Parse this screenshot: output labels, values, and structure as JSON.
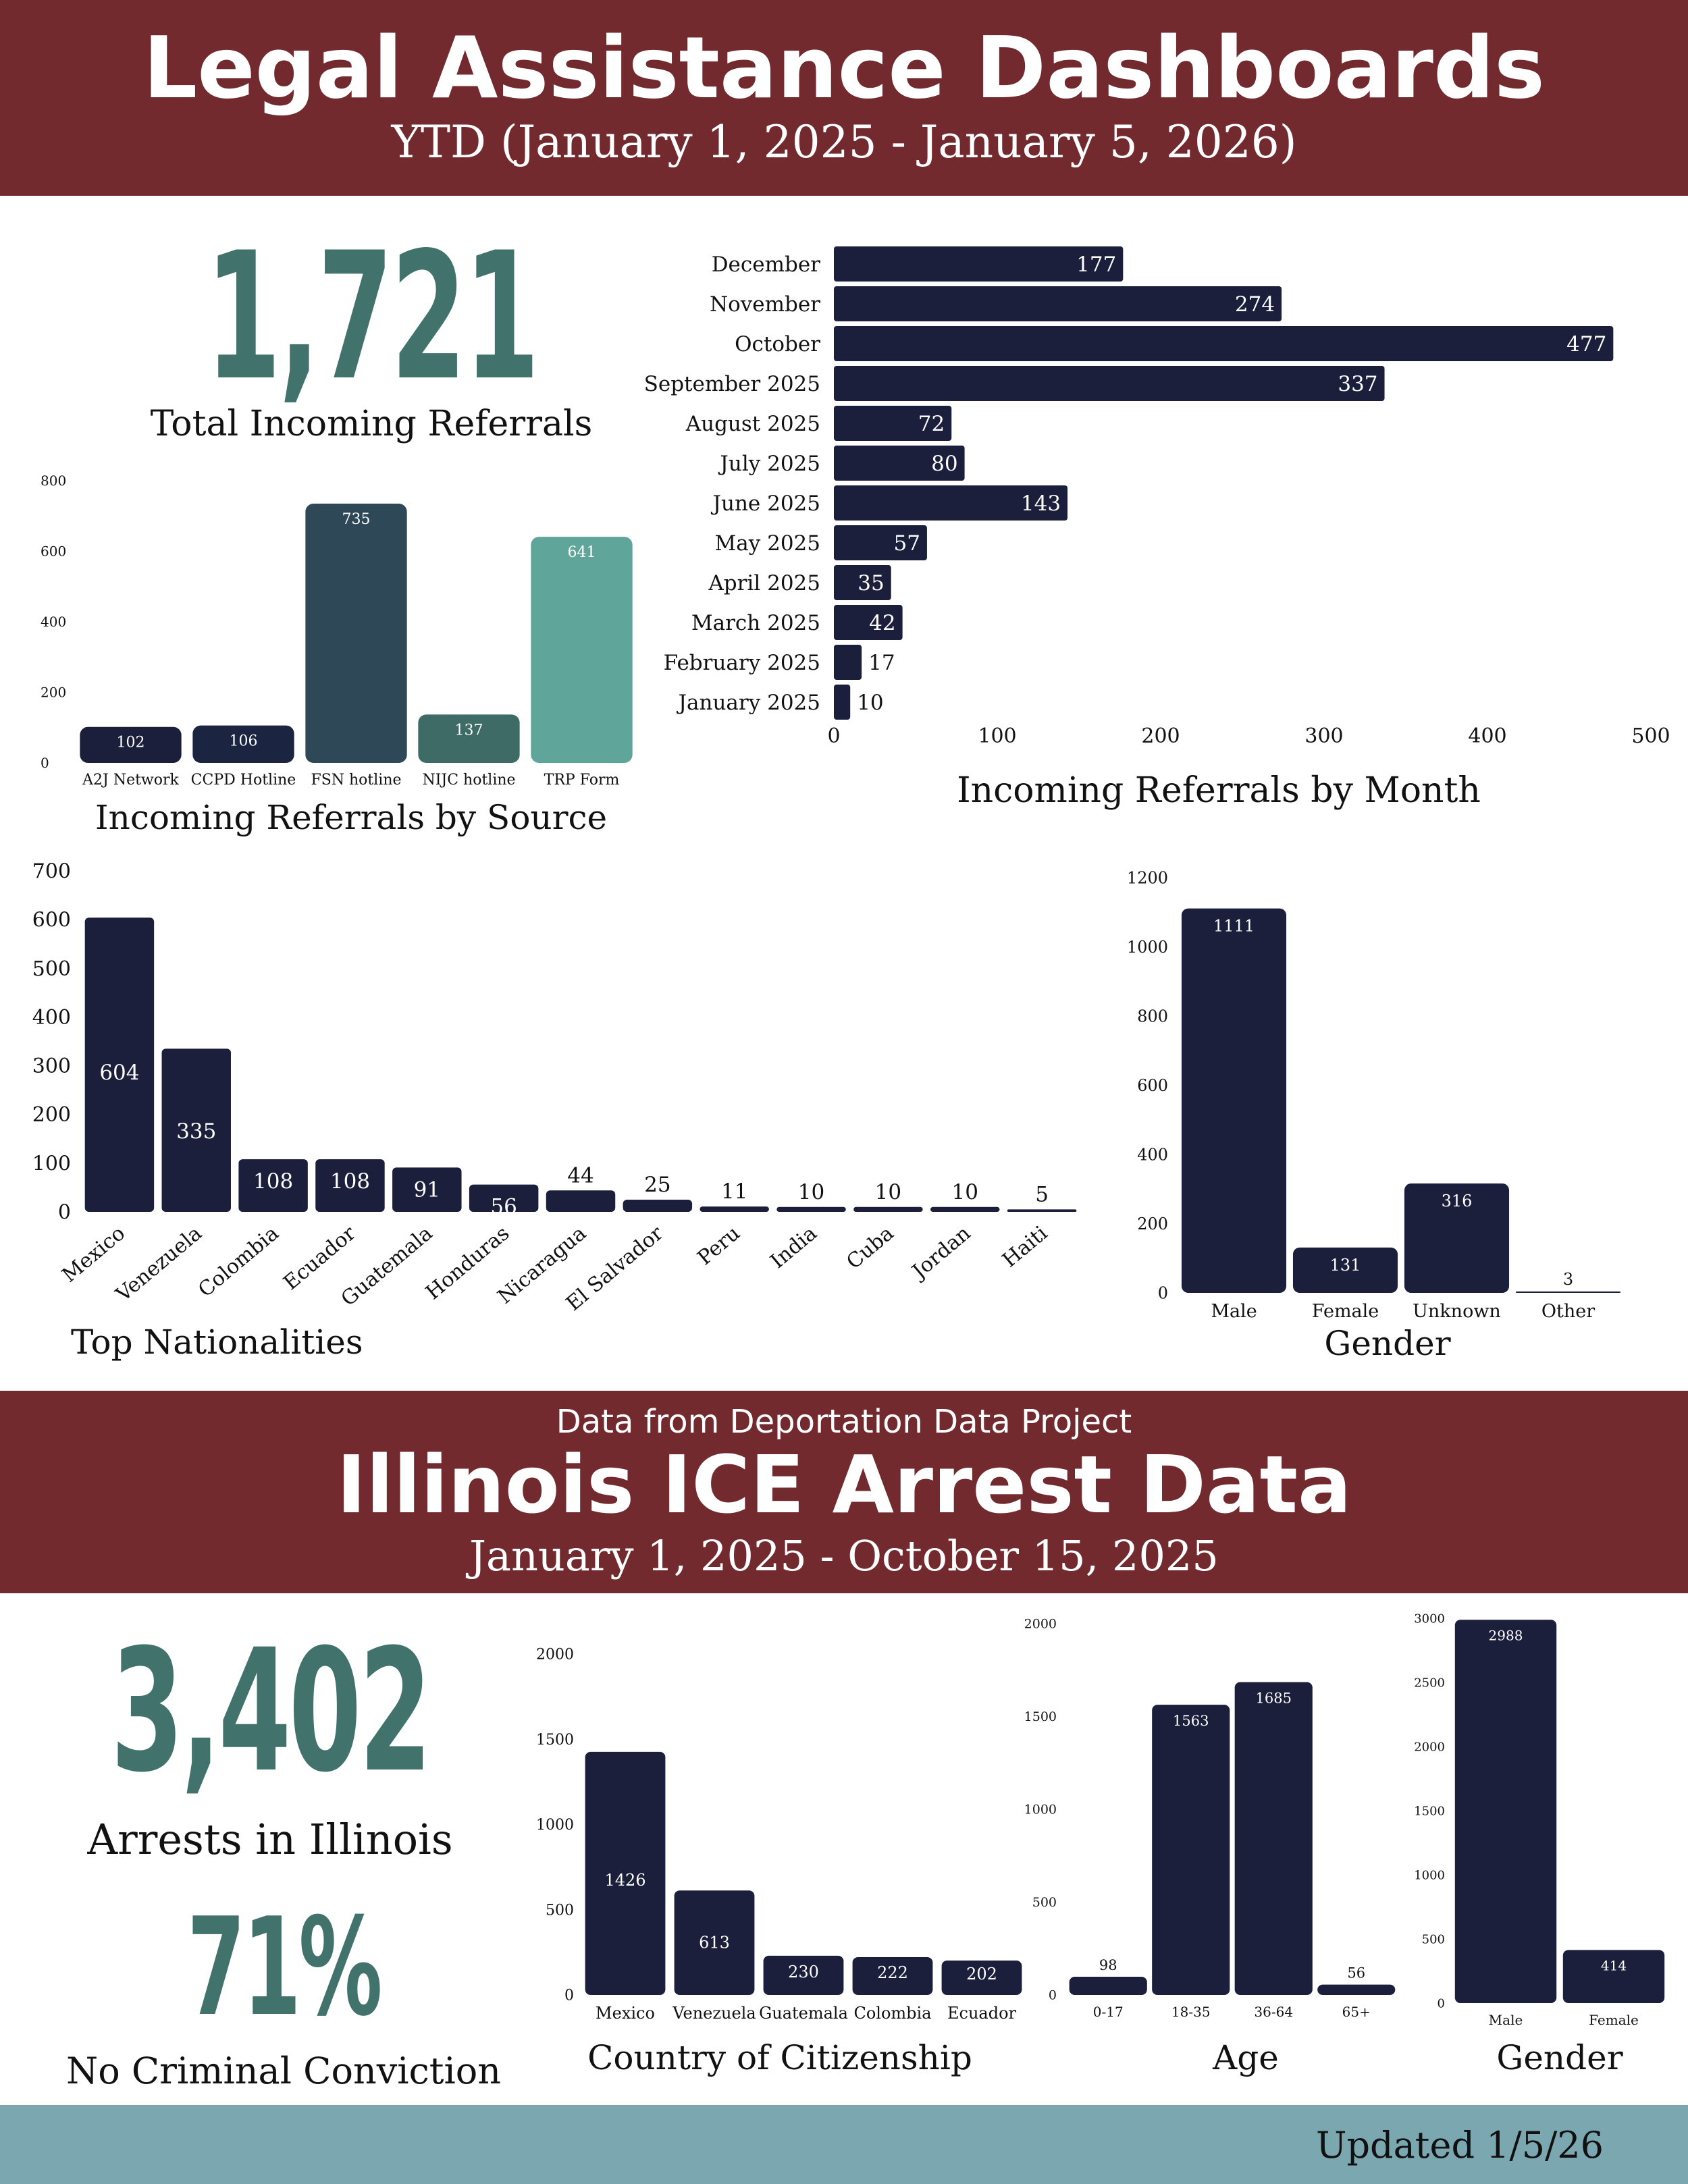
{
  "header": {
    "title": "Legal Assistance Dashboards",
    "subtitle": "YTD (January 1, 2025 - January 5, 2026)"
  },
  "referrals": {
    "total": "1,721",
    "total_label": "Total Incoming Referrals"
  },
  "section2": {
    "pre_title": "Data from Deportation Data Project",
    "title": "Illinois ICE Arrest Data",
    "subtitle": "January 1, 2025 - October 15, 2025"
  },
  "arrests": {
    "total": "3,402",
    "total_label": "Arrests in Illinois",
    "no_conviction": "71%",
    "no_conviction_label": "No Criminal Conviction"
  },
  "footer": {
    "updated": "Updated 1/5/26"
  },
  "colors": {
    "navy": "#1b1f3b",
    "banner": "#722a2f",
    "teal": "#42726c",
    "footer": "#7ba7b0"
  },
  "chart_data": [
    {
      "id": "by_source",
      "type": "bar",
      "title": "Incoming Referrals by Source",
      "categories": [
        "A2J Network",
        "CCPD Hotline",
        "FSN hotline",
        "NIJC hotline",
        "TRP Form"
      ],
      "values": [
        102,
        106,
        735,
        137,
        641
      ],
      "colors": [
        "#1b1f3b",
        "#1b2440",
        "#2f4858",
        "#3e6b66",
        "#5fa59a"
      ],
      "ylim": [
        0,
        800
      ],
      "yticks": [
        0,
        200,
        400,
        600,
        800
      ]
    },
    {
      "id": "by_month",
      "type": "bar",
      "orientation": "horizontal",
      "title": "Incoming Referrals by Month",
      "categories": [
        "December",
        "November",
        "October",
        "September 2025",
        "August 2025",
        "July 2025",
        "June 2025",
        "May 2025",
        "April 2025",
        "March 2025",
        "February 2025",
        "January 2025"
      ],
      "values": [
        177,
        274,
        477,
        337,
        72,
        80,
        143,
        57,
        35,
        42,
        17,
        10
      ],
      "xlim": [
        0,
        500
      ],
      "xticks": [
        0,
        100,
        200,
        300,
        400,
        500
      ]
    },
    {
      "id": "nationalities",
      "type": "bar",
      "title": "Top Nationalities",
      "categories": [
        "Mexico",
        "Venezuela",
        "Colombia",
        "Ecuador",
        "Guatemala",
        "Honduras",
        "Nicaragua",
        "El Salvador",
        "Peru",
        "India",
        "Cuba",
        "Jordan",
        "Haiti"
      ],
      "values": [
        604,
        335,
        108,
        108,
        91,
        56,
        44,
        25,
        11,
        10,
        10,
        10,
        5
      ],
      "ylim": [
        0,
        700
      ],
      "yticks": [
        0,
        100,
        200,
        300,
        400,
        500,
        600,
        700
      ]
    },
    {
      "id": "gender_referrals",
      "type": "bar",
      "title": "Gender",
      "categories": [
        "Male",
        "Female",
        "Unknown",
        "Other"
      ],
      "values": [
        1111,
        131,
        316,
        3
      ],
      "ylim": [
        0,
        1200
      ],
      "yticks": [
        0,
        200,
        400,
        600,
        800,
        1000,
        1200
      ]
    },
    {
      "id": "citizenship",
      "type": "bar",
      "title": "Country of Citizenship",
      "categories": [
        "Mexico",
        "Venezuela",
        "Guatemala",
        "Colombia",
        "Ecuador"
      ],
      "values": [
        1426,
        613,
        230,
        222,
        202
      ],
      "ylim": [
        0,
        2000
      ],
      "yticks": [
        0,
        500,
        1000,
        1500,
        2000
      ]
    },
    {
      "id": "age",
      "type": "bar",
      "title": "Age",
      "categories": [
        "0-17",
        "18-35",
        "36-64",
        "65+"
      ],
      "values": [
        98,
        1563,
        1685,
        56
      ],
      "ylim": [
        0,
        2000
      ],
      "yticks": [
        0,
        500,
        1000,
        1500,
        2000
      ]
    },
    {
      "id": "gender_arrests",
      "type": "bar",
      "title": "Gender",
      "categories": [
        "Male",
        "Female"
      ],
      "values": [
        2988,
        414
      ],
      "ylim": [
        0,
        3000
      ],
      "yticks": [
        0,
        500,
        1000,
        1500,
        2000,
        2500,
        3000
      ]
    }
  ]
}
